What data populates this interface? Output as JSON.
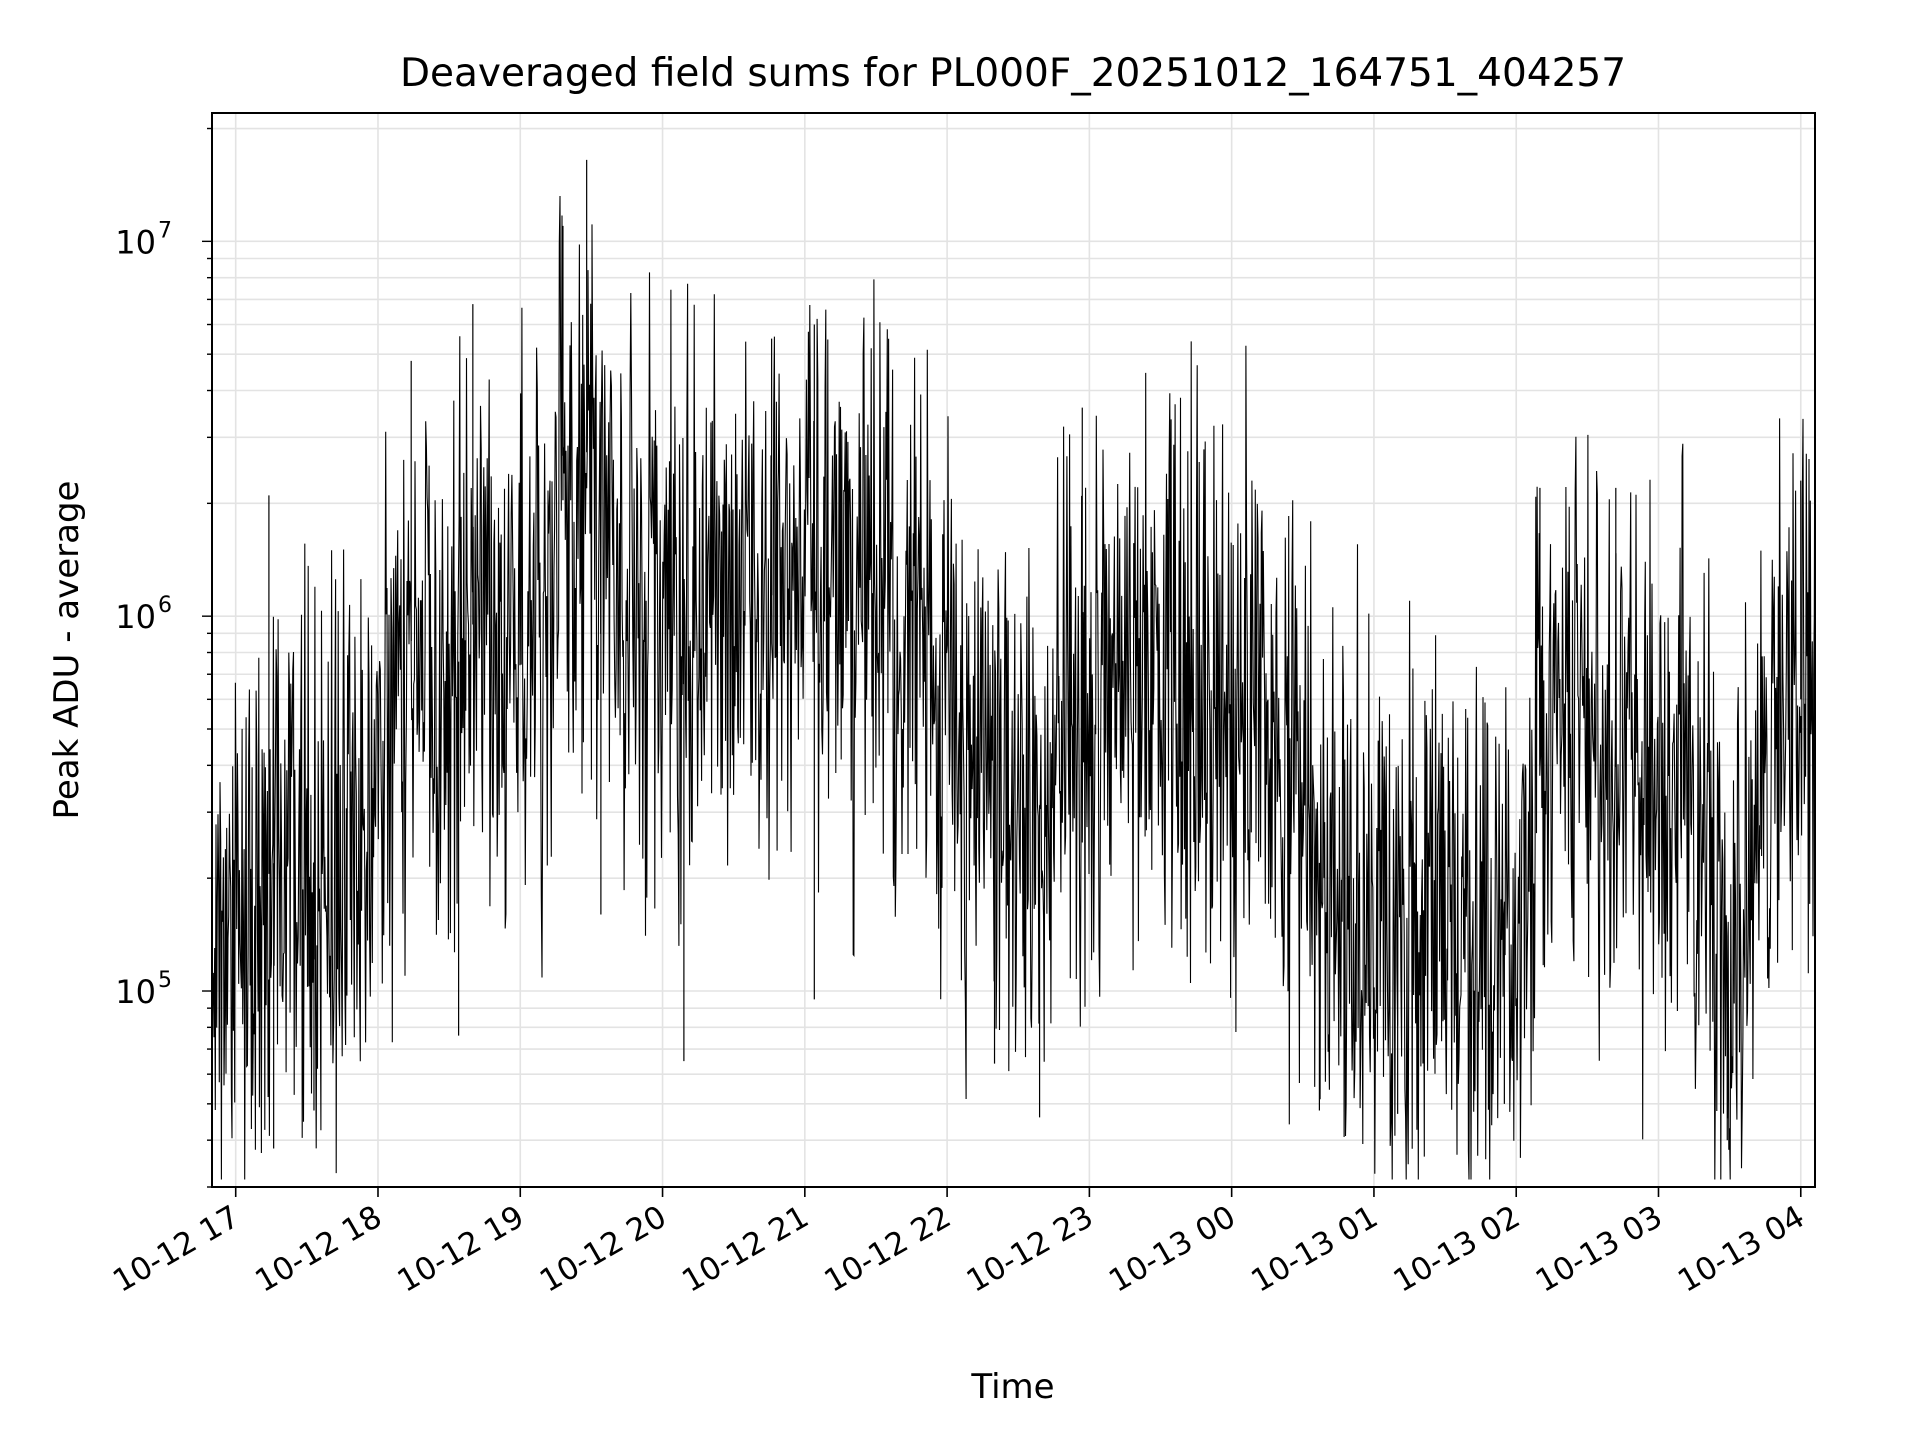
{
  "chart_data": {
    "type": "line",
    "title": "Deaveraged field sums for PL000F_20251012_164751_404257",
    "xlabel": "Time",
    "ylabel": "Peak ADU - average",
    "yscale": "log",
    "ylim": [
      30000,
      22000000
    ],
    "xlim": [
      "2025-10-12 16:50",
      "2025-10-13 04:06"
    ],
    "grid": true,
    "x_tick_labels": [
      "10-12 17",
      "10-12 18",
      "10-12 19",
      "10-12 20",
      "10-12 21",
      "10-12 22",
      "10-12 23",
      "10-13 00",
      "10-13 01",
      "10-13 02",
      "10-13 03",
      "10-13 04"
    ],
    "y_tick_labels": [
      {
        "value": 100000,
        "base": "10",
        "exp": "5"
      },
      {
        "value": 1000000,
        "base": "10",
        "exp": "6"
      },
      {
        "value": 10000000,
        "base": "10",
        "exp": "7"
      }
    ],
    "series": [
      {
        "color": "#000000",
        "points": [
          [
            "2025-10-12 16:50",
            110000
          ],
          [
            "2025-10-12 17:00",
            150000
          ],
          [
            "2025-10-12 17:10",
            180000
          ],
          [
            "2025-10-12 17:20",
            250000
          ],
          [
            "2025-10-12 17:30",
            230000
          ],
          [
            "2025-10-12 17:40",
            200000
          ],
          [
            "2025-10-12 17:50",
            220000
          ],
          [
            "2025-10-12 18:00",
            400000
          ],
          [
            "2025-10-12 18:10",
            900000
          ],
          [
            "2025-10-12 18:20",
            800000
          ],
          [
            "2025-10-12 18:30",
            650000
          ],
          [
            "2025-10-12 18:40",
            950000
          ],
          [
            "2025-10-12 18:50",
            800000
          ],
          [
            "2025-10-12 19:00",
            700000
          ],
          [
            "2025-10-12 19:10",
            900000
          ],
          [
            "2025-10-12 19:20",
            2500000
          ],
          [
            "2025-10-12 19:30",
            2800000
          ],
          [
            "2025-10-12 19:40",
            1500000
          ],
          [
            "2025-10-12 19:50",
            1300000
          ],
          [
            "2025-10-12 20:00",
            1100000
          ],
          [
            "2025-10-12 20:10",
            1000000
          ],
          [
            "2025-10-12 20:20",
            1000000
          ],
          [
            "2025-10-12 20:30",
            1100000
          ],
          [
            "2025-10-12 20:40",
            1050000
          ],
          [
            "2025-10-12 20:50",
            1200000
          ],
          [
            "2025-10-12 21:00",
            1400000
          ],
          [
            "2025-10-12 21:10",
            1300000
          ],
          [
            "2025-10-12 21:20",
            1200000
          ],
          [
            "2025-10-12 21:30",
            1000000
          ],
          [
            "2025-10-12 21:40",
            900000
          ],
          [
            "2025-10-12 21:50",
            700000
          ],
          [
            "2025-10-12 22:00",
            550000
          ],
          [
            "2025-10-12 22:10",
            450000
          ],
          [
            "2025-10-12 22:20",
            400000
          ],
          [
            "2025-10-12 22:30",
            350000
          ],
          [
            "2025-10-12 22:40",
            300000
          ],
          [
            "2025-10-12 22:50",
            500000
          ],
          [
            "2025-10-12 23:00",
            650000
          ],
          [
            "2025-10-12 23:10",
            750000
          ],
          [
            "2025-10-12 23:20",
            700000
          ],
          [
            "2025-10-12 23:30",
            650000
          ],
          [
            "2025-10-12 23:40",
            600000
          ],
          [
            "2025-10-12 23:50",
            500000
          ],
          [
            "2025-10-13 00:00",
            550000
          ],
          [
            "2025-10-13 00:10",
            600000
          ],
          [
            "2025-10-13 00:20",
            450000
          ],
          [
            "2025-10-13 00:30",
            350000
          ],
          [
            "2025-10-13 00:40",
            180000
          ],
          [
            "2025-10-13 00:50",
            130000
          ],
          [
            "2025-10-13 01:00",
            180000
          ],
          [
            "2025-10-13 01:10",
            160000
          ],
          [
            "2025-10-13 01:20",
            130000
          ],
          [
            "2025-10-13 01:30",
            140000
          ],
          [
            "2025-10-13 01:40",
            150000
          ],
          [
            "2025-10-13 01:50",
            140000
          ],
          [
            "2025-10-13 02:00",
            150000
          ],
          [
            "2025-10-13 02:10",
            400000
          ],
          [
            "2025-10-13 02:20",
            500000
          ],
          [
            "2025-10-13 02:30",
            450000
          ],
          [
            "2025-10-13 02:40",
            400000
          ],
          [
            "2025-10-13 02:50",
            380000
          ],
          [
            "2025-10-13 03:00",
            300000
          ],
          [
            "2025-10-13 03:10",
            400000
          ],
          [
            "2025-10-13 03:20",
            250000
          ],
          [
            "2025-10-13 03:30",
            70000
          ],
          [
            "2025-10-13 03:40",
            350000
          ],
          [
            "2025-10-13 03:50",
            450000
          ],
          [
            "2025-10-13 04:00",
            600000
          ],
          [
            "2025-10-13 04:06",
            800000
          ]
        ],
        "spikes": [
          [
            "2025-10-12 17:14",
            2100000
          ],
          [
            "2025-10-12 17:16",
            38000
          ],
          [
            "2025-10-12 17:33",
            48000
          ],
          [
            "2025-10-12 18:14",
            4800000
          ],
          [
            "2025-10-12 18:34",
            76000
          ],
          [
            "2025-10-12 18:40",
            6800000
          ],
          [
            "2025-10-12 19:18",
            11000000
          ],
          [
            "2025-10-12 19:28",
            16500000
          ],
          [
            "2025-10-12 19:34",
            160000
          ],
          [
            "2025-10-12 20:09",
            65000
          ],
          [
            "2025-10-12 20:46",
            5500000
          ],
          [
            "2025-10-12 21:04",
            6000000
          ],
          [
            "2025-10-12 21:04",
            95000
          ],
          [
            "2025-10-12 22:20",
            64000
          ],
          [
            "2025-10-12 22:39",
            46000
          ],
          [
            "2025-10-12 22:57",
            3600000
          ],
          [
            "2025-10-13 00:37",
            48000
          ],
          [
            "2025-10-13 01:10",
            47000
          ],
          [
            "2025-10-13 01:55",
            50000
          ],
          [
            "2025-10-13 02:10",
            2200000
          ],
          [
            "2025-10-13 02:42",
            2200000
          ],
          [
            "2025-10-13 03:29",
            40000
          ],
          [
            "2025-10-13 04:00",
            2300000
          ]
        ]
      }
    ]
  }
}
